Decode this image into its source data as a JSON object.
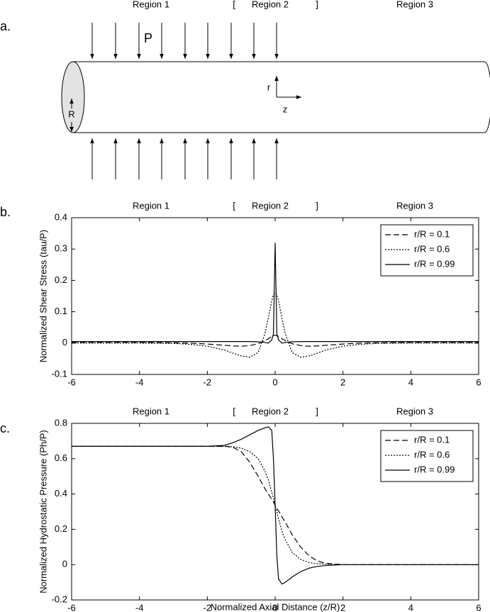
{
  "diagram": {
    "panel_label": "a.",
    "region_labels": [
      "Region 1",
      "[",
      "Region 2",
      "]",
      "Region 3"
    ],
    "pressure_label": "P",
    "radius_label": "R",
    "axis_r": "r",
    "axis_z": "z"
  },
  "chart_data": [
    {
      "type": "line",
      "panel_label": "b.",
      "region_labels": [
        "Region 1",
        "[",
        "Region 2",
        "]",
        "Region 3"
      ],
      "ylabel": "Normalized Shear Stress (tau/P)",
      "x": [
        -6,
        -5,
        -4,
        -3,
        -2.5,
        -2,
        -1.5,
        -1.25,
        -1,
        -0.75,
        -0.5,
        -0.3,
        -0.2,
        -0.1,
        -0.05,
        0,
        0.05,
        0.1,
        0.2,
        0.3,
        0.5,
        0.75,
        1,
        1.25,
        1.5,
        2,
        2.5,
        3,
        4,
        5,
        6
      ],
      "series": [
        {
          "name": "r/R = 0.1",
          "color": "#000000",
          "linestyle": "dashed",
          "values": [
            0.002,
            0.002,
            0.002,
            0.001,
            0,
            -0.003,
            -0.007,
            -0.009,
            -0.01,
            -0.008,
            -0.002,
            0.008,
            0.014,
            0.021,
            0.024,
            0.025,
            0.024,
            0.021,
            0.014,
            0.008,
            -0.002,
            -0.008,
            -0.01,
            -0.009,
            -0.007,
            -0.003,
            0,
            0.001,
            0.002,
            0.002,
            0.002
          ]
        },
        {
          "name": "r/R = 0.6",
          "color": "#000000",
          "linestyle": "dotted",
          "values": [
            0,
            0,
            0,
            -0.001,
            -0.004,
            -0.01,
            -0.022,
            -0.032,
            -0.041,
            -0.045,
            -0.03,
            0.03,
            0.08,
            0.135,
            0.155,
            0.16,
            0.155,
            0.135,
            0.08,
            0.03,
            -0.03,
            -0.045,
            -0.041,
            -0.032,
            -0.022,
            -0.01,
            -0.004,
            -0.001,
            0,
            0,
            0
          ]
        },
        {
          "name": "r/R = 0.99",
          "color": "#000000",
          "linestyle": "solid",
          "values": [
            0.005,
            0.005,
            0.005,
            0.005,
            0.005,
            0.005,
            0.005,
            0.005,
            0.005,
            0.005,
            0.004,
            0.002,
            0,
            0.01,
            0.03,
            0.32,
            0.03,
            0.01,
            0,
            0.002,
            0.004,
            0.005,
            0.005,
            0.005,
            0.005,
            0.005,
            0.005,
            0.005,
            0.005,
            0.005,
            0.005
          ]
        }
      ],
      "xlim": [
        -6,
        6
      ],
      "xticks": [
        -6,
        -4,
        -2,
        0,
        2,
        4,
        6
      ],
      "ylim": [
        -0.1,
        0.4
      ],
      "yticks": [
        -0.1,
        0,
        0.1,
        0.2,
        0.3,
        0.4
      ],
      "legend": "upper right"
    },
    {
      "type": "line",
      "panel_label": "c.",
      "region_labels": [
        "Region 1",
        "[",
        "Region 2",
        "]",
        "Region 3"
      ],
      "ylabel": "Normalized Hydrostatic Pressure (Ph/P)",
      "xlabel": "Normalized Axial Distance (z/R)",
      "x": [
        -6,
        -5,
        -4,
        -3,
        -2.5,
        -2,
        -1.5,
        -1.25,
        -1,
        -0.75,
        -0.5,
        -0.3,
        -0.2,
        -0.1,
        -0.05,
        0,
        0.05,
        0.1,
        0.2,
        0.3,
        0.5,
        0.75,
        1,
        1.25,
        1.5,
        2,
        2.5,
        3,
        4,
        5,
        6
      ],
      "series": [
        {
          "name": "r/R = 0.1",
          "color": "#000000",
          "linestyle": "dashed",
          "values": [
            0.67,
            0.67,
            0.67,
            0.67,
            0.67,
            0.67,
            0.67,
            0.665,
            0.64,
            0.58,
            0.5,
            0.43,
            0.4,
            0.37,
            0.355,
            0.335,
            0.32,
            0.305,
            0.27,
            0.24,
            0.17,
            0.1,
            0.05,
            0.02,
            0.007,
            0,
            0,
            0,
            0,
            0,
            0
          ]
        },
        {
          "name": "r/R = 0.6",
          "color": "#000000",
          "linestyle": "dotted",
          "values": [
            0.67,
            0.67,
            0.67,
            0.67,
            0.67,
            0.67,
            0.67,
            0.668,
            0.66,
            0.64,
            0.6,
            0.53,
            0.48,
            0.41,
            0.375,
            0.335,
            0.3,
            0.26,
            0.19,
            0.14,
            0.07,
            0.03,
            0.012,
            0.005,
            0.002,
            0,
            0,
            0,
            0,
            0,
            0
          ]
        },
        {
          "name": "r/R = 0.99",
          "color": "#000000",
          "linestyle": "solid",
          "values": [
            0.67,
            0.67,
            0.67,
            0.67,
            0.67,
            0.67,
            0.675,
            0.69,
            0.71,
            0.735,
            0.76,
            0.775,
            0.78,
            0.76,
            0.6,
            0.335,
            0.05,
            -0.08,
            -0.11,
            -0.1,
            -0.07,
            -0.04,
            -0.02,
            -0.01,
            -0.005,
            0,
            0,
            0,
            0,
            0,
            0
          ]
        }
      ],
      "xlim": [
        -6,
        6
      ],
      "xticks": [
        -6,
        -4,
        -2,
        0,
        2,
        4,
        6
      ],
      "ylim": [
        -0.2,
        0.8
      ],
      "yticks": [
        -0.2,
        0,
        0.2,
        0.4,
        0.6,
        0.8
      ],
      "legend": "upper right"
    }
  ]
}
